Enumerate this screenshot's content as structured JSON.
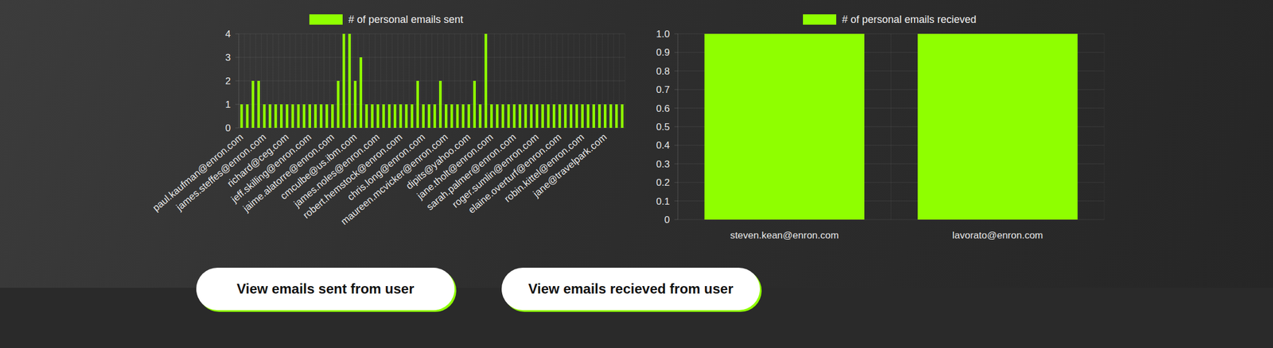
{
  "chart_data": [
    {
      "type": "bar",
      "categories": [
        "paul.kaufman@enron.com",
        null,
        null,
        null,
        "james.steffes@enron.com",
        null,
        null,
        null,
        "richard@ceg.com",
        null,
        null,
        null,
        "jeff.skilling@enron.com",
        null,
        null,
        null,
        "jaime.alatorre@enron.com",
        null,
        null,
        null,
        "cmculbe@us.ibm.com",
        null,
        null,
        null,
        "james.noles@enron.com",
        null,
        null,
        null,
        "robert.hemstock@enron.com",
        null,
        null,
        null,
        "chris.long@enron.com",
        null,
        null,
        null,
        "maureen.mcvicker@enron.com",
        null,
        null,
        null,
        "dipits@yahoo.com",
        null,
        null,
        null,
        "jane.tholt@enron.com",
        null,
        null,
        null,
        "sarah.palmer@enron.com",
        null,
        null,
        null,
        "roger.sumlin@enron.com",
        null,
        null,
        null,
        "elaine.overturf@enron.com",
        null,
        null,
        null,
        "robin.kittel@enron.com",
        null,
        null,
        null,
        "jane@travelpark.com",
        null,
        null,
        null
      ],
      "series": [
        {
          "name": "# of personal emails sent",
          "color": "#8fff00",
          "values": [
            1,
            1,
            2,
            2,
            1,
            1,
            1,
            1,
            1,
            1,
            1,
            1,
            1,
            1,
            1,
            1,
            1,
            2,
            4,
            4,
            2,
            3,
            1,
            1,
            1,
            1,
            1,
            1,
            1,
            1,
            1,
            2,
            1,
            1,
            1,
            2,
            1,
            1,
            1,
            1,
            1,
            2,
            1,
            4,
            1,
            1,
            1,
            1,
            1,
            1,
            1,
            1,
            1,
            1,
            1,
            1,
            1,
            1,
            1,
            1,
            1,
            1,
            1,
            1,
            1,
            1,
            1,
            1
          ]
        }
      ],
      "ylim": [
        0,
        4
      ],
      "yticks": [
        0,
        1,
        2,
        3,
        4
      ],
      "grid": true,
      "legend": "top"
    },
    {
      "type": "bar",
      "categories": [
        "steven.kean@enron.com",
        "lavorato@enron.com"
      ],
      "series": [
        {
          "name": "# of personal emails recieved",
          "color": "#8fff00",
          "values": [
            1,
            1
          ]
        }
      ],
      "ylim": [
        0,
        1
      ],
      "yticks": [
        0,
        0.1,
        0.2,
        0.3,
        0.4,
        0.5,
        0.6,
        0.7,
        0.8,
        0.9,
        {
          "value": 1,
          "label": "1.0"
        }
      ],
      "grid": true,
      "legend": "top"
    }
  ],
  "buttons": [
    "View emails sent from user",
    "View emails recieved from user"
  ]
}
